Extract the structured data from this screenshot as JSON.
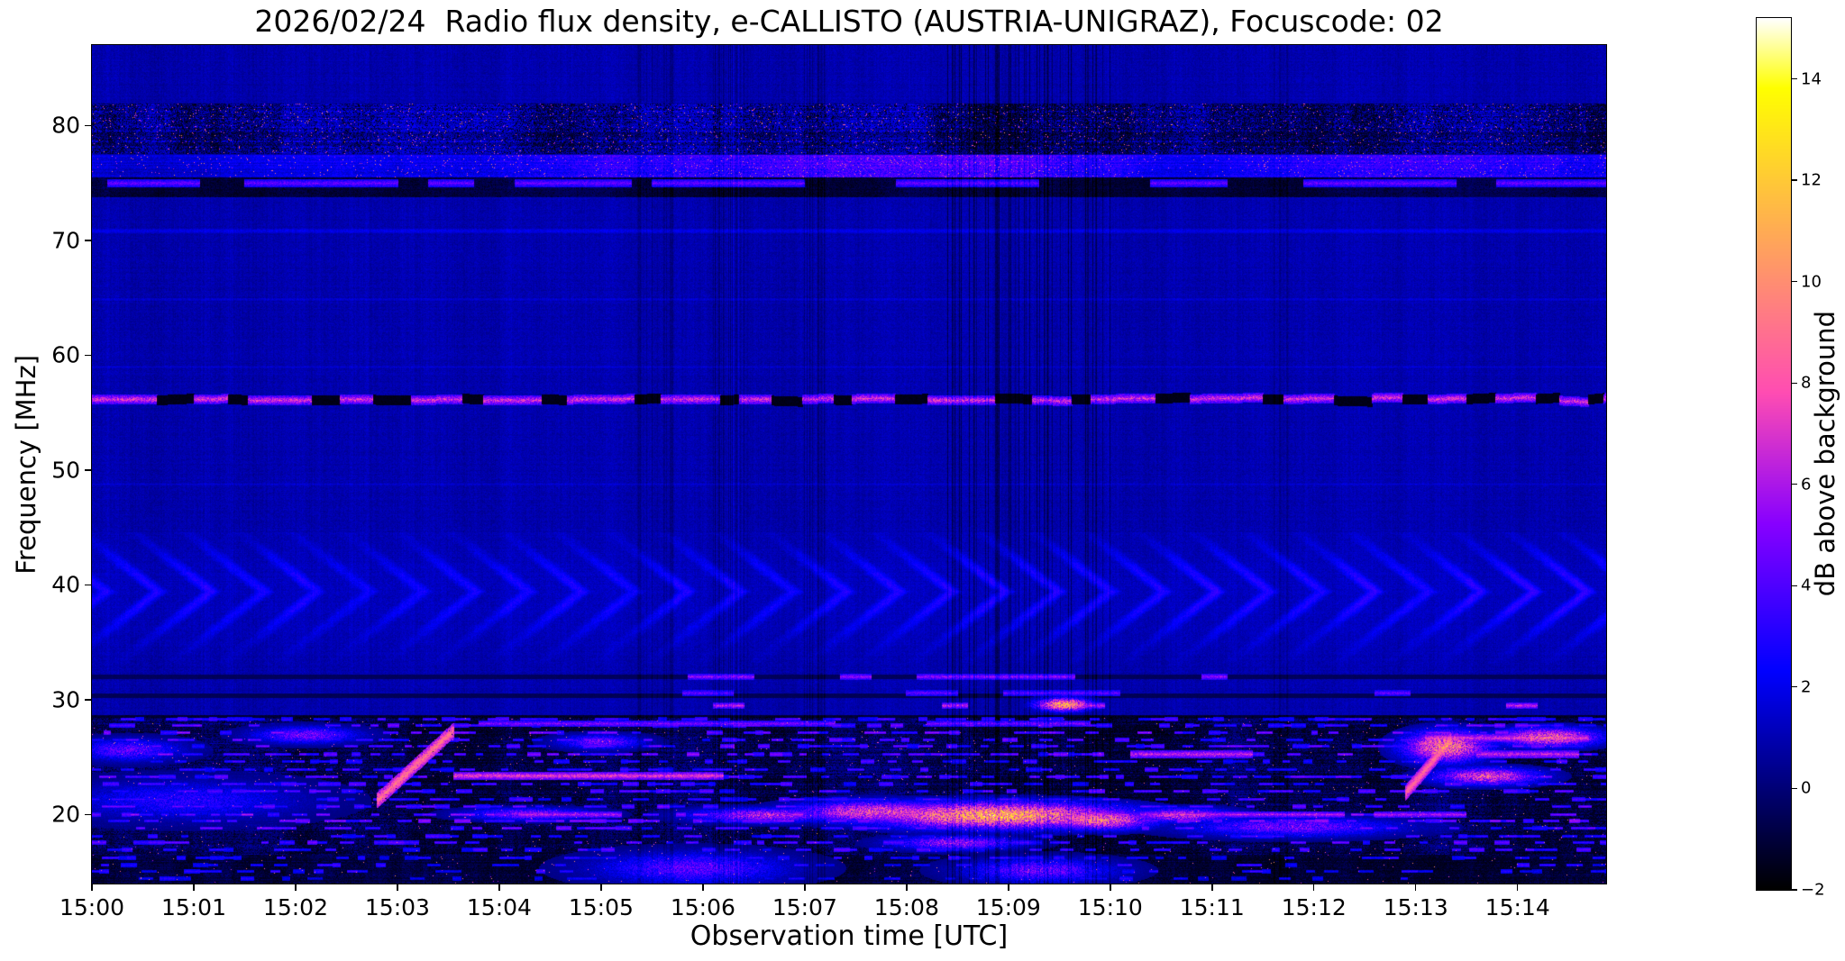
{
  "chart_data": {
    "type": "heatmap",
    "title": "2026/02/24  Radio flux density, e-CALLISTO (AUSTRIA-UNIGRAZ), Focuscode: 02",
    "xlabel": "Observation time [UTC]",
    "ylabel": "Frequency [MHz]",
    "colorbar_label": "dB above background",
    "x_tick_labels": [
      "15:00",
      "15:01",
      "15:02",
      "15:03",
      "15:04",
      "15:05",
      "15:06",
      "15:07",
      "15:08",
      "15:09",
      "15:10",
      "15:11",
      "15:12",
      "15:13",
      "15:14"
    ],
    "y_tick_values": [
      20,
      30,
      40,
      50,
      60,
      70,
      80
    ],
    "freq_range_mhz": [
      14,
      87
    ],
    "time_span_min": 14.87,
    "start_time_utc": "15:00",
    "value_range_db": [
      -2,
      15.2
    ],
    "colorbar_ticks_db": [
      14,
      12,
      10,
      8,
      6,
      4,
      2,
      0,
      -2
    ],
    "colormap": "gnuplot2",
    "grid": false,
    "legend": "none",
    "render": {
      "seed": 20260224,
      "background_db": 0.9,
      "pixel_noise": 0.8,
      "col_noise": 0.3,
      "row_noise": 0.22
    },
    "features": [
      {
        "kind": "band",
        "f0": 77.6,
        "f1": 81.9,
        "base": 0.5,
        "noise": 2.2,
        "dark_frac": 0.38,
        "spark": 0.015,
        "blotch": 1.5,
        "row_var": 1.6,
        "desc": "broadband RFI 78-82 MHz"
      },
      {
        "kind": "band",
        "f0": 75.5,
        "f1": 77.4,
        "base": 3.2,
        "noise": 2.0,
        "spark": 0.025,
        "blotch": 0.8,
        "row_var": 1.0,
        "env": [
          [
            0,
            0.55
          ],
          [
            2,
            0.6
          ],
          [
            3,
            0.7
          ],
          [
            4,
            0.8
          ],
          [
            5,
            1.0
          ],
          [
            6,
            0.95
          ],
          [
            7,
            1.1
          ],
          [
            8,
            1.25
          ],
          [
            9,
            1.2
          ],
          [
            10,
            0.9
          ],
          [
            10.8,
            0.6
          ],
          [
            11.5,
            0.75
          ],
          [
            12.5,
            0.9
          ],
          [
            13.5,
            0.95
          ],
          [
            14.9,
            0.85
          ]
        ],
        "desc": "bright RFI band 75.5-77.5 MHz"
      },
      {
        "kind": "band",
        "f0": 73.8,
        "f1": 75.5,
        "base": -0.8,
        "noise": 0.7,
        "dark_frac": 0.25,
        "blotch": 0.6,
        "row_var": 0.5
      },
      {
        "kind": "band",
        "f0": 13.9,
        "f1": 28.6,
        "base": -0.4,
        "noise": 1.5,
        "dark_frac": 0.3,
        "blotch": 1.2,
        "spark": 0.004,
        "row_var": 1.4,
        "desc": "HF RFI zone below 28 MHz"
      },
      {
        "kind": "band",
        "f0": 13.9,
        "f1": 16.4,
        "base": -1.0,
        "noise": 0.9,
        "dark_frac": 0.45,
        "blotch": 0.8,
        "spark": 0.003,
        "row_var": 0.8
      },
      {
        "kind": "hline",
        "f": 70.85,
        "halfw": 0.12,
        "v": 1.1,
        "mode": "add",
        "segs": [
          [
            0,
            14.87
          ]
        ]
      },
      {
        "kind": "hline",
        "f": 64.9,
        "halfw": 0.1,
        "v": 0.7,
        "mode": "add",
        "segs": [
          [
            0,
            14.87
          ]
        ]
      },
      {
        "kind": "hline",
        "f": 59.0,
        "halfw": 0.1,
        "v": 0.6,
        "mode": "add",
        "segs": [
          [
            0,
            14.87
          ]
        ]
      },
      {
        "kind": "hline",
        "f": 48.8,
        "halfw": 0.1,
        "v": 0.5,
        "mode": "add",
        "segs": [
          [
            0,
            14.87
          ]
        ]
      },
      {
        "kind": "hline",
        "f": 75.0,
        "halfw": 0.3,
        "v": 4.5,
        "var": 2.2,
        "segs": [
          [
            0.15,
            1.05
          ],
          [
            1.5,
            3.0
          ],
          [
            3.3,
            3.75
          ],
          [
            4.15,
            5.3
          ],
          [
            5.5,
            7.0
          ],
          [
            7.9,
            9.3
          ],
          [
            10.4,
            11.15
          ],
          [
            11.9,
            13.4
          ],
          [
            13.8,
            14.87
          ]
        ],
        "desc": "intermittent carrier 75 MHz"
      },
      {
        "kind": "dashes",
        "f": 56.15,
        "halfw": 0.4,
        "v_on": 7.0,
        "var_on": 4.0,
        "v_off": -1.8,
        "seg_mean": 0.5,
        "gap_mean": 0.25,
        "desc": "strong intermittent carrier at 56 MHz with black dropouts"
      },
      {
        "kind": "ripple",
        "f0": 33.2,
        "f1": 44.5,
        "fc": 39.4,
        "sigma": 2.8,
        "amp": 1.7,
        "period": 0.52,
        "skew": 0.28,
        "desc": "ionospheric fringe / ripple pattern 34-44 MHz"
      },
      {
        "kind": "hline",
        "f": 31.95,
        "halfw": 0.12,
        "v": -0.6,
        "mode": "min",
        "segs": [
          [
            0,
            14.87
          ]
        ]
      },
      {
        "kind": "hline",
        "f": 30.35,
        "halfw": 0.12,
        "v": -0.7,
        "mode": "min",
        "segs": [
          [
            0,
            14.87
          ]
        ]
      },
      {
        "kind": "hline",
        "f": 28.55,
        "halfw": 0.1,
        "v": -1.2,
        "mode": "min",
        "segs": [
          [
            0,
            14.87
          ]
        ]
      },
      {
        "kind": "hline",
        "f": 32.0,
        "halfw": 0.25,
        "v": 5.5,
        "var": 2.5,
        "segs": [
          [
            5.85,
            6.5
          ],
          [
            7.35,
            7.65
          ],
          [
            8.1,
            9.65
          ],
          [
            10.9,
            11.15
          ]
        ]
      },
      {
        "kind": "hline",
        "f": 30.6,
        "halfw": 0.22,
        "v": 4.5,
        "var": 2.0,
        "segs": [
          [
            5.8,
            6.3
          ],
          [
            8.0,
            8.5
          ],
          [
            8.95,
            10.1
          ],
          [
            12.6,
            12.95
          ]
        ]
      },
      {
        "kind": "hline",
        "f": 29.5,
        "halfw": 0.25,
        "v": 6.5,
        "var": 3.0,
        "segs": [
          [
            6.1,
            6.4
          ],
          [
            8.35,
            8.6
          ],
          [
            9.45,
            9.95
          ],
          [
            13.9,
            14.2
          ]
        ]
      },
      {
        "kind": "rows",
        "desc": "shortwave RFI channels 14-28 MHz",
        "rows": [
          {
            "f": 28.25,
            "v": 3.5,
            "var": 2.0,
            "prob": 0.5
          },
          {
            "f": 27.7,
            "v": 4.0,
            "var": 2.5,
            "prob": 0.45
          },
          {
            "f": 27.1,
            "v": 4.5,
            "var": 3.0,
            "prob": 0.5
          },
          {
            "f": 26.5,
            "v": 4.0,
            "var": 3.0,
            "prob": 0.55
          },
          {
            "f": 25.9,
            "v": 4.0,
            "var": 2.5,
            "prob": 0.5
          },
          {
            "f": 25.25,
            "v": 4.5,
            "var": 3.0,
            "prob": 0.5
          },
          {
            "f": 24.6,
            "v": 3.5,
            "var": 2.0,
            "prob": 0.45
          },
          {
            "f": 23.9,
            "v": 3.5,
            "var": 2.0,
            "prob": 0.4
          },
          {
            "f": 23.3,
            "v": 4.0,
            "var": 2.5,
            "prob": 0.45
          },
          {
            "f": 22.6,
            "v": 3.5,
            "var": 2.0,
            "prob": 0.45
          },
          {
            "f": 22.0,
            "v": 4.0,
            "var": 2.5,
            "prob": 0.4
          },
          {
            "f": 21.3,
            "v": 3.5,
            "var": 2.0,
            "prob": 0.45
          },
          {
            "f": 20.7,
            "v": 4.0,
            "var": 2.5,
            "prob": 0.45
          },
          {
            "f": 20.0,
            "v": 5.0,
            "var": 3.0,
            "prob": 0.55
          },
          {
            "f": 19.4,
            "v": 4.5,
            "var": 3.0,
            "prob": 0.5
          },
          {
            "f": 18.8,
            "v": 4.0,
            "var": 2.5,
            "prob": 0.45
          },
          {
            "f": 18.1,
            "v": 3.5,
            "var": 2.0,
            "prob": 0.4
          },
          {
            "f": 17.5,
            "v": 4.0,
            "var": 2.5,
            "prob": 0.4
          },
          {
            "f": 16.9,
            "v": 3.5,
            "var": 2.0,
            "prob": 0.35
          },
          {
            "f": 16.2,
            "v": 3.0,
            "var": 2.0,
            "prob": 0.3
          },
          {
            "f": 15.6,
            "v": 3.0,
            "var": 2.0,
            "prob": 0.25
          },
          {
            "f": 15.0,
            "v": 3.0,
            "var": 2.0,
            "prob": 0.22
          },
          {
            "f": 14.4,
            "v": 2.5,
            "var": 1.5,
            "prob": 0.2
          }
        ]
      },
      {
        "kind": "hline",
        "f": 27.9,
        "halfw": 0.25,
        "v": 5.0,
        "var": 2.5,
        "segs": [
          [
            3.8,
            7.3
          ],
          [
            8.2,
            9.8
          ]
        ]
      },
      {
        "kind": "hline",
        "f": 23.35,
        "halfw": 0.3,
        "v": 7.5,
        "var": 3.0,
        "segs": [
          [
            3.55,
            6.2
          ]
        ],
        "desc": "bright line 23.3 MHz 15:03.5-15:06"
      },
      {
        "kind": "hline",
        "f": 20.0,
        "halfw": 0.25,
        "v": 6.0,
        "var": 3.0,
        "segs": [
          [
            4.3,
            5.2
          ],
          [
            10.3,
            12.3
          ],
          [
            12.6,
            13.5
          ]
        ]
      },
      {
        "kind": "hline",
        "f": 26.6,
        "halfw": 0.3,
        "v": 7.0,
        "var": 3.0,
        "segs": [
          [
            13.1,
            14.7
          ]
        ]
      },
      {
        "kind": "hline",
        "f": 25.2,
        "halfw": 0.3,
        "v": 6.5,
        "var": 3.0,
        "segs": [
          [
            10.2,
            11.4
          ],
          [
            13.6,
            14.6
          ]
        ]
      },
      {
        "kind": "streak",
        "t0": 2.8,
        "f0": 21.2,
        "t1": 3.55,
        "f1": 27.3,
        "halfw": 0.35,
        "v": 8.5,
        "var": 3.5,
        "desc": "drifting RFI sweep near 15:03"
      },
      {
        "kind": "streak",
        "t0": 12.9,
        "f0": 21.8,
        "t1": 13.35,
        "f1": 26.5,
        "halfw": 0.3,
        "v": 8.0,
        "var": 3.0,
        "desc": "drifting RFI sweep near 15:13"
      },
      {
        "kind": "blob",
        "t": 0.9,
        "f": 21.2,
        "dt": 2.2,
        "df": 3.2,
        "v": 3.2,
        "var": 1.5
      },
      {
        "kind": "blob",
        "t": 0.35,
        "f": 25.6,
        "dt": 1.0,
        "df": 1.8,
        "v": 4.5,
        "var": 2.0
      },
      {
        "kind": "blob",
        "t": 2.1,
        "f": 26.9,
        "dt": 1.0,
        "df": 1.4,
        "v": 5.0,
        "var": 2.5
      },
      {
        "kind": "blob",
        "t": 5.0,
        "f": 26.3,
        "dt": 0.8,
        "df": 1.2,
        "v": 5.0,
        "var": 2.5
      },
      {
        "kind": "blob",
        "t": 4.3,
        "f": 20.0,
        "dt": 1.2,
        "df": 1.0,
        "v": 5.5,
        "var": 2.5
      },
      {
        "kind": "blob",
        "t": 6.6,
        "f": 19.9,
        "dt": 1.4,
        "df": 1.2,
        "v": 6.5,
        "var": 2.5
      },
      {
        "kind": "blob",
        "t": 7.7,
        "f": 20.2,
        "dt": 1.6,
        "df": 1.8,
        "v": 8.0,
        "var": 3.0
      },
      {
        "kind": "blob",
        "t": 8.9,
        "f": 19.9,
        "dt": 2.4,
        "df": 2.2,
        "v": 11.5,
        "var": 3.0,
        "desc": "strong orange RFI burst ~20 MHz 15:08-15:10"
      },
      {
        "kind": "blob",
        "t": 9.9,
        "f": 19.5,
        "dt": 1.0,
        "df": 1.6,
        "v": 9.5,
        "var": 3.0
      },
      {
        "kind": "blob",
        "t": 9.55,
        "f": 29.55,
        "dt": 0.55,
        "df": 1.1,
        "v": 11.0,
        "var": 2.5,
        "desc": "orange spot 29.5 MHz at 15:09.5"
      },
      {
        "kind": "blob",
        "t": 10.7,
        "f": 19.9,
        "dt": 1.0,
        "df": 1.2,
        "v": 7.0,
        "var": 2.5
      },
      {
        "kind": "blob",
        "t": 11.8,
        "f": 18.9,
        "dt": 2.0,
        "df": 1.6,
        "v": 5.0,
        "var": 2.5
      },
      {
        "kind": "blob",
        "t": 13.3,
        "f": 25.9,
        "dt": 0.8,
        "df": 2.6,
        "v": 9.5,
        "var": 3.0
      },
      {
        "kind": "blob",
        "t": 13.7,
        "f": 23.3,
        "dt": 1.0,
        "df": 1.4,
        "v": 8.0,
        "var": 3.0
      },
      {
        "kind": "blob",
        "t": 14.3,
        "f": 26.7,
        "dt": 1.0,
        "df": 1.6,
        "v": 8.5,
        "var": 3.0
      },
      {
        "kind": "blob",
        "t": 5.9,
        "f": 15.3,
        "dt": 1.8,
        "df": 2.6,
        "v": 4.5,
        "var": 2.0
      },
      {
        "kind": "blob",
        "t": 9.3,
        "f": 15.1,
        "dt": 1.4,
        "df": 2.0,
        "v": 5.0,
        "var": 2.5
      },
      {
        "kind": "blob",
        "t": 8.5,
        "f": 17.5,
        "dt": 1.2,
        "df": 1.2,
        "v": 6.0,
        "var": 2.5
      },
      {
        "kind": "cols",
        "t0": 8.4,
        "t1": 10.0,
        "density": 0.28,
        "amp": -1.2,
        "desc": "dark vertical striations 15:08-15:10"
      },
      {
        "kind": "cols",
        "t0": 6.1,
        "t1": 6.45,
        "density": 0.4,
        "amp": -0.8
      },
      {
        "kind": "cols",
        "t0": 5.35,
        "t1": 5.7,
        "density": 0.3,
        "amp": -0.6
      },
      {
        "kind": "cols",
        "t0": 7.0,
        "t1": 7.2,
        "density": 0.35,
        "amp": -0.7
      },
      {
        "kind": "cols",
        "t0": 11.6,
        "t1": 11.75,
        "density": 0.3,
        "amp": -0.5
      },
      {
        "kind": "cols",
        "t0": 6.25,
        "t1": 6.4,
        "density": 0.5,
        "amp": 0.5
      }
    ]
  }
}
